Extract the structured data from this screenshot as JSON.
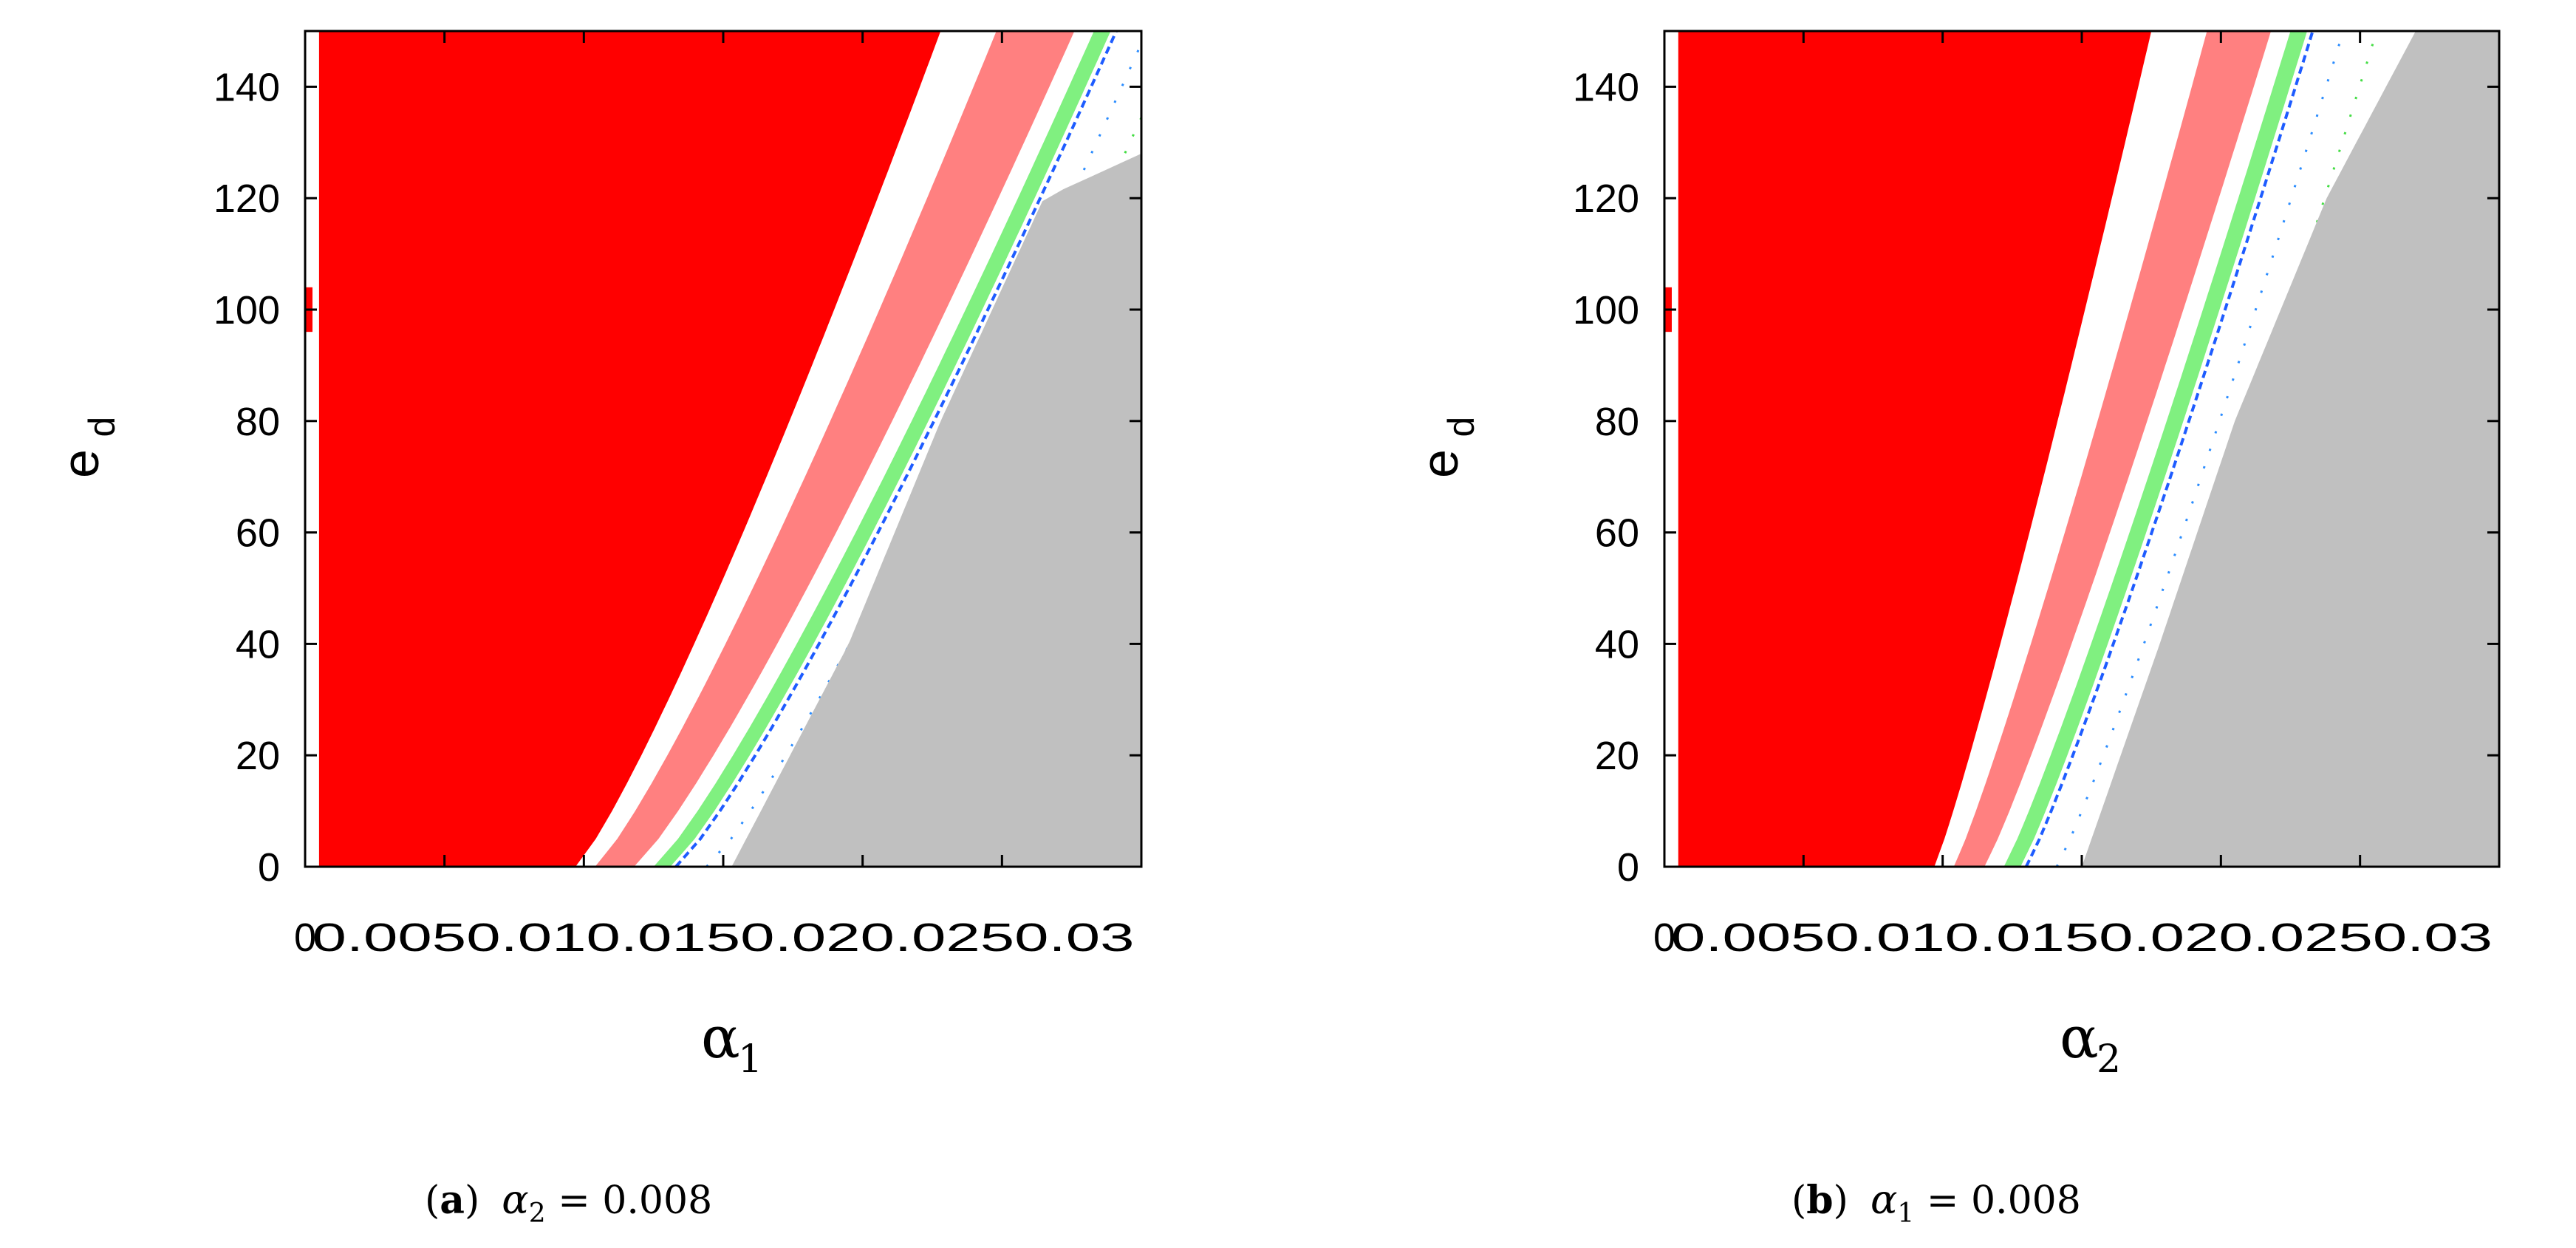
{
  "chart_data": [
    {
      "type": "heatmap",
      "panel": "a",
      "caption": {
        "letter": "a",
        "var": "α",
        "sub": "2",
        "rest": " = 0.008"
      },
      "xlabel": {
        "var": "α",
        "sub": "1"
      },
      "ylabel": {
        "var": "e",
        "sub": "d"
      },
      "xlim": [
        0,
        0.03
      ],
      "ylim": [
        0,
        150
      ],
      "x_ticks": [
        "0",
        "0.005",
        "0.01",
        "0.015",
        "0.02",
        "0.025",
        "0.03"
      ],
      "y_ticks": [
        "0",
        "20",
        "40",
        "60",
        "80",
        "100",
        "120",
        "140"
      ],
      "regions_note": "boundary curves x(e_d) separating colored regions",
      "bands": [
        {
          "color": "#ff0000",
          "role": "region-1",
          "x_at": [
            [
              0,
              0.0097
            ],
            [
              150,
              0.0228
            ]
          ]
        },
        {
          "color": "#ff8080",
          "role": "region-2",
          "x_at": [
            [
              0,
              0.0104
            ],
            [
              150,
              0.0248
            ]
          ]
        },
        {
          "color": "#80f080",
          "role": "region-3",
          "x_at": [
            [
              0,
              0.0125
            ],
            [
              150,
              0.0283
            ]
          ]
        },
        {
          "color": "#c0c0c0",
          "role": "region-4",
          "x_at": [
            [
              0,
              0.0153
            ],
            [
              150,
              0.03
            ]
          ]
        }
      ],
      "grey_boundary": [
        [
          0,
          0.0153
        ],
        [
          40,
          0.0195
        ],
        [
          80,
          0.0228
        ],
        [
          120,
          0.0265
        ],
        [
          128,
          0.03
        ]
      ],
      "red_left_edge": 0.0005
    },
    {
      "type": "heatmap",
      "panel": "b",
      "caption": {
        "letter": "b",
        "var": "α",
        "sub": "1",
        "rest": " = 0.008"
      },
      "xlabel": {
        "var": "α",
        "sub": "2"
      },
      "ylabel": {
        "var": "e",
        "sub": "d"
      },
      "xlim": [
        0,
        0.03
      ],
      "ylim": [
        0,
        150
      ],
      "x_ticks": [
        "0",
        "0.005",
        "0.01",
        "0.015",
        "0.02",
        "0.025",
        "0.03"
      ],
      "y_ticks": [
        "0",
        "20",
        "40",
        "60",
        "80",
        "100",
        "120",
        "140"
      ],
      "bands": [
        {
          "color": "#ff0000",
          "role": "region-1",
          "x_at": [
            [
              0,
              0.0097
            ],
            [
              150,
              0.0175
            ]
          ]
        },
        {
          "color": "#ff8080",
          "role": "region-2",
          "x_at": [
            [
              0,
              0.0104
            ],
            [
              150,
              0.0195
            ]
          ]
        },
        {
          "color": "#80f080",
          "role": "region-3",
          "x_at": [
            [
              0,
              0.0122
            ],
            [
              150,
              0.0225
            ]
          ]
        },
        {
          "color": "#c0c0c0",
          "role": "region-4",
          "x_at": [
            [
              0,
              0.015
            ],
            [
              150,
              0.027
            ]
          ]
        }
      ],
      "grey_boundary": [
        [
          0,
          0.015
        ],
        [
          40,
          0.0178
        ],
        [
          80,
          0.0205
        ],
        [
          120,
          0.0238
        ],
        [
          150,
          0.027
        ]
      ],
      "red_left_edge": 0.0005
    }
  ]
}
